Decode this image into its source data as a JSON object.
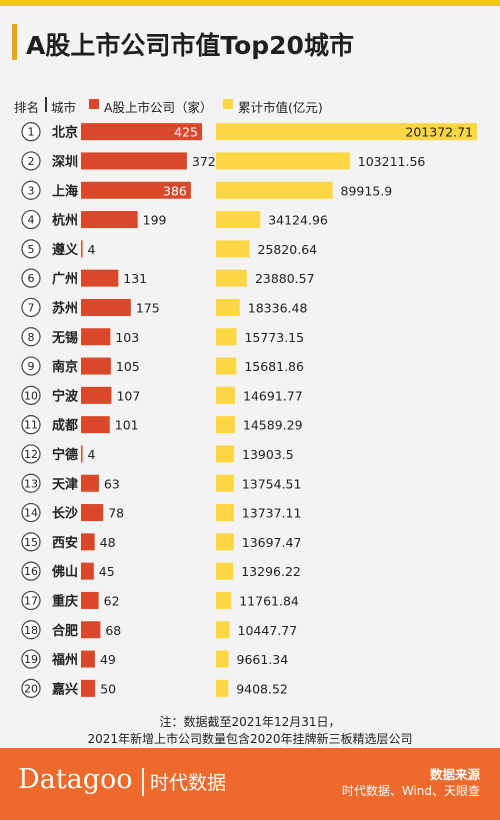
{
  "title": "A股上市公司市值Top20城市",
  "legend": {
    "rank_label": "排名",
    "city_label": "城市",
    "count_label": "A股上市公司（家）",
    "cap_label": "累计市值(亿元)",
    "count_color": "#d9482a",
    "cap_color": "#fcd743"
  },
  "chart_data": {
    "type": "bar",
    "title": "A股上市公司市值Top20城市",
    "categories": [
      "北京",
      "深圳",
      "上海",
      "杭州",
      "遵义",
      "广州",
      "苏州",
      "无锡",
      "南京",
      "宁波",
      "成都",
      "宁德",
      "天津",
      "长沙",
      "西安",
      "佛山",
      "重庆",
      "合肥",
      "福州",
      "嘉兴"
    ],
    "ranks": [
      "1",
      "2",
      "3",
      "4",
      "5",
      "6",
      "7",
      "8",
      "9",
      "10",
      "11",
      "12",
      "13",
      "14",
      "15",
      "16",
      "17",
      "18",
      "19",
      "20"
    ],
    "series": [
      {
        "name": "A股上市公司（家）",
        "values": [
          425,
          372,
          386,
          199,
          4,
          131,
          175,
          103,
          105,
          107,
          101,
          4,
          63,
          78,
          48,
          45,
          62,
          68,
          49,
          50
        ],
        "labels": [
          "425",
          "372",
          "386",
          "199",
          "4",
          "131",
          "175",
          "103",
          "105",
          "107",
          "101",
          "4",
          "63",
          "78",
          "48",
          "45",
          "62",
          "68",
          "49",
          "50"
        ]
      },
      {
        "name": "累计市值(亿元)",
        "values": [
          201372.71,
          103211.56,
          89915.9,
          34124.96,
          25820.64,
          23880.57,
          18336.48,
          15773.15,
          15681.86,
          14691.77,
          14589.29,
          13903.5,
          13754.51,
          13737.11,
          13697.47,
          13296.22,
          11761.84,
          10447.77,
          9661.34,
          9408.52
        ],
        "labels": [
          "201372.71",
          "103211.56",
          "89915.9",
          "34124.96",
          "25820.64",
          "23880.57",
          "18336.48",
          "15773.15",
          "15681.86",
          "14691.77",
          "14589.29",
          "13903.5",
          "13754.51",
          "13737.11",
          "13697.47",
          "13296.22",
          "11761.84",
          "10447.77",
          "9661.34",
          "9408.52"
        ]
      }
    ],
    "grid": false,
    "legend_position": "top"
  },
  "notes": [
    "注：数据截至2021年12月31日，",
    "2021年新增上市公司数量包含2020年挂牌新三板精选层公司"
  ],
  "footer": {
    "brand": "Datagoo",
    "brand_cn": "时代数据",
    "source_title": "数据来源",
    "source_text": "时代数据、Wind、天眼查"
  }
}
